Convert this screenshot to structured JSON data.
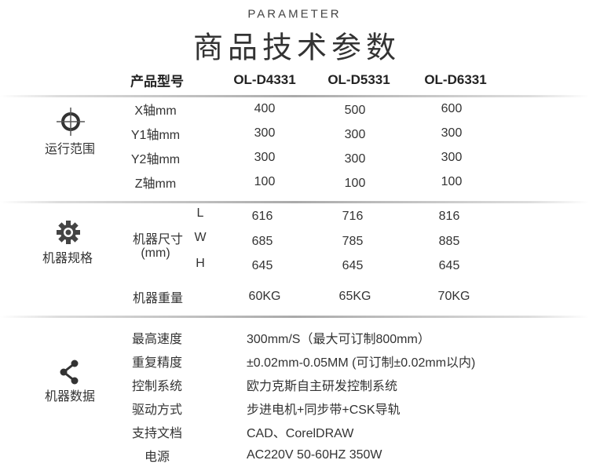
{
  "header": {
    "eyebrow": "PARAMETER",
    "title": "商品技术参数"
  },
  "table_header": {
    "label": "产品型号",
    "models": [
      "OL-D4331",
      "OL-D5331",
      "OL-D6331"
    ]
  },
  "sections": [
    {
      "name": "运行范围",
      "icon": "crosshair-icon",
      "rows": [
        {
          "label": "X轴mm",
          "values": [
            "400",
            "500",
            "600"
          ]
        },
        {
          "label": "Y1轴mm",
          "values": [
            "300",
            "300",
            "300"
          ]
        },
        {
          "label": "Y2轴mm",
          "values": [
            "300",
            "300",
            "300"
          ]
        },
        {
          "label": "Z轴mm",
          "values": [
            "100",
            "100",
            "100"
          ]
        }
      ]
    },
    {
      "name": "机器规格",
      "icon": "gear-icon",
      "size_label": "机器尺寸",
      "size_unit": "(mm)",
      "dims": [
        {
          "axis": "L",
          "values": [
            "616",
            "716",
            "816"
          ]
        },
        {
          "axis": "W",
          "values": [
            "685",
            "785",
            "885"
          ]
        },
        {
          "axis": "H",
          "values": [
            "645",
            "645",
            "645"
          ]
        }
      ],
      "weight": {
        "label": "机器重量",
        "values": [
          "60KG",
          "65KG",
          "70KG"
        ]
      }
    },
    {
      "name": "机器数据",
      "icon": "share-icon",
      "rows": [
        {
          "label": "最高速度",
          "value": "300mm/S（最大可订制800mm）"
        },
        {
          "label": "重复精度",
          "value": "±0.02mm-0.05MM (可订制±0.02mm以内)"
        },
        {
          "label": "控制系统",
          "value": "欧力克斯自主研发控制系统"
        },
        {
          "label": "驱动方式",
          "value": "步进电机+同步带+CSK导轨"
        },
        {
          "label": "支持文档",
          "value": "CAD、CorelDRAW"
        },
        {
          "label": "电源",
          "value": "AC220V  50-60HZ  350W"
        }
      ]
    }
  ]
}
